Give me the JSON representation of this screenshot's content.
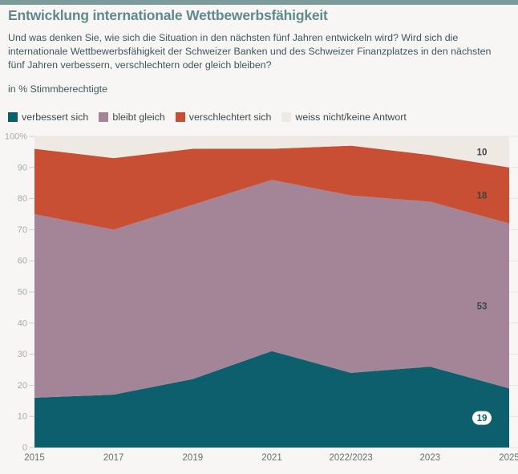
{
  "page": {
    "title": "Entwicklung internationale Wettbewerbsfähigkeit",
    "question": "Und was denken Sie, wie sich die Situation in den nächsten fünf Jahren entwickeln wird? Wird sich die internationale Wettbewerbsfähigkeit der Schweizer Banken und des Schweizer Finanzplatzes in den nächsten fünf Jahren verbessern, verschlechtern oder gleich bleiben?",
    "unit_label": "in % Stimmberechtigte"
  },
  "colors": {
    "topbar": "#7d9b99",
    "background": "#f7f6f4",
    "title_text": "#61898b",
    "body_text": "#3b585e",
    "legend_text": "#3e4a4c",
    "axis_y_text": "#a3abaa",
    "axis_x_text": "#667171",
    "grid_line": "#e9e4df",
    "tick_mark": "#cfc9c4",
    "value_label_text": "#3a4547",
    "badge_bg": "#ffffff"
  },
  "chart_data": {
    "type": "area",
    "stacked": true,
    "title": "Entwicklung internationale Wettbewerbsfähigkeit",
    "ylabel": "in % Stimmberechtigte",
    "ylim": [
      0,
      100
    ],
    "grid": true,
    "legend_position": "top",
    "categories": [
      "2015",
      "2017",
      "2019",
      "2021",
      "2022/2023",
      "2023",
      "2025"
    ],
    "series": [
      {
        "name": "verbessert sich",
        "color": "#0e5f6d",
        "values": [
          16,
          17,
          22,
          31,
          24,
          26,
          19
        ],
        "end_label_style": "badge"
      },
      {
        "name": "bleibt gleich",
        "color": "#a48598",
        "values": [
          59,
          53,
          56,
          55,
          57,
          53,
          53
        ],
        "end_label_style": "plain"
      },
      {
        "name": "verschlechtert sich",
        "color": "#c84f33",
        "values": [
          21,
          23,
          18,
          10,
          16,
          15,
          18
        ],
        "end_label_style": "plain"
      },
      {
        "name": "weiss nicht/keine Antwort",
        "color": "#efe9e4",
        "values": [
          4,
          7,
          4,
          4,
          3,
          6,
          10
        ],
        "end_label_style": "plain"
      }
    ],
    "end_value_labels": [
      19,
      53,
      18,
      10
    ],
    "y_ticks": [
      "100%",
      "90",
      "80",
      "70",
      "60",
      "50",
      "40",
      "30",
      "20",
      "10",
      "0"
    ]
  }
}
